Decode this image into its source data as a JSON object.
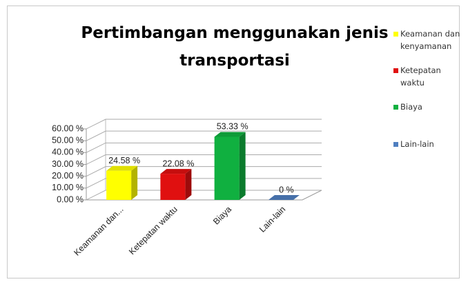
{
  "chart_data": {
    "type": "bar3d",
    "title": "Pertimbangan menggunakan jenis transportasi",
    "categories": [
      "Keamanan dan...",
      "Ketepatan waktu",
      "Biaya",
      "Lain-lain"
    ],
    "values": [
      24.58,
      22.08,
      53.33,
      0
    ],
    "value_labels": [
      "24.58 %",
      "22.08 %",
      "53.33 %",
      "0 %"
    ],
    "colors": [
      "#ffff00",
      "#e01010",
      "#10b040",
      "#4f7fc0"
    ],
    "legend": [
      "Keamanan dan kenyamanan",
      "Ketepatan waktu",
      "Biaya",
      "Lain-lain"
    ],
    "legend_position": "right",
    "ylim": [
      0,
      60
    ],
    "yticks": [
      {
        "value": 0,
        "label": "0.00 %"
      },
      {
        "value": 10,
        "label": "10.00 %"
      },
      {
        "value": 20,
        "label": "20.00 %"
      },
      {
        "value": 30,
        "label": "30.00 %"
      },
      {
        "value": 40,
        "label": "40.00 %"
      },
      {
        "value": 50,
        "label": "50.00 %"
      },
      {
        "value": 60,
        "label": "60.00 %"
      }
    ],
    "grid": true
  }
}
